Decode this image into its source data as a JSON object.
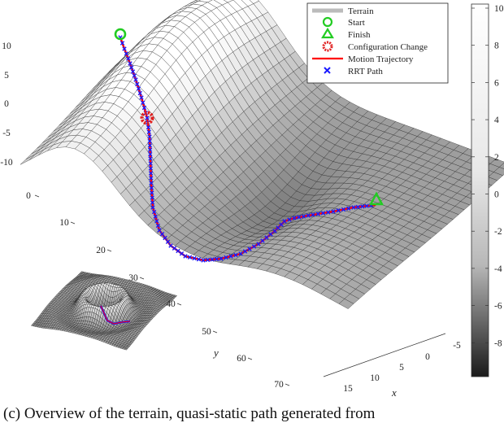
{
  "chart_data": {
    "type": "surface",
    "legend": {
      "placement": "top-right",
      "entries": [
        "Terrain",
        "Start",
        "Finish",
        "Configuration Change",
        "Motion Trajectory",
        "RRT Path"
      ]
    },
    "axes": {
      "xlabel": "x",
      "ylabel": "y",
      "x_ticks": [
        "-5",
        "0",
        "5",
        "10",
        "15"
      ],
      "y_ticks": [
        "0",
        "10",
        "20",
        "30",
        "40",
        "50",
        "60",
        "70"
      ],
      "z_ticks": [
        "10",
        "5",
        "0",
        "-5",
        "-10"
      ],
      "xlim": [
        -5,
        15
      ],
      "ylim": [
        0,
        70
      ],
      "zlim": [
        -10,
        10
      ],
      "grid": false
    },
    "colorbar": {
      "ticks": [
        "10",
        "8",
        "6",
        "4",
        "2",
        "0",
        "-2",
        "-4",
        "-6",
        "-8"
      ],
      "range": [
        -10,
        10
      ],
      "colormap": "gray"
    },
    "markers": {
      "start_color": "#22cc22",
      "finish_color": "#22cc22",
      "config_change_color": "#e02020",
      "trajectory_color": "#ff0000",
      "rrt_color": "#1a1aff"
    },
    "inset": "terrain overview"
  },
  "caption": "(c) Overview of the terrain, quasi-static path generated from"
}
